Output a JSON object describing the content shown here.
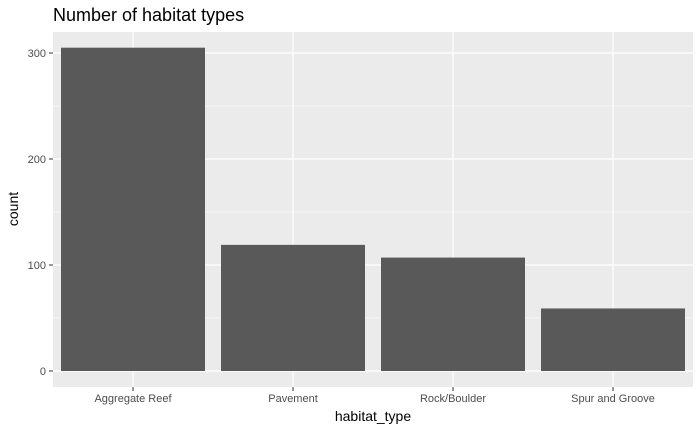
{
  "chart_data": {
    "type": "bar",
    "title": "Number of habitat types",
    "xlabel": "habitat_type",
    "ylabel": "count",
    "categories": [
      "Aggregate Reef",
      "Pavement",
      "Rock/Boulder",
      "Spur and Groove"
    ],
    "values": [
      305,
      119,
      107,
      59
    ],
    "ylim": [
      0,
      320
    ],
    "yticks": [
      0,
      100,
      200,
      300
    ],
    "grid": true,
    "colors": {
      "bar": "#595959",
      "panel_background": "#ebebeb",
      "gridline": "#ffffff",
      "tick_label": "#4d4d4d"
    }
  }
}
